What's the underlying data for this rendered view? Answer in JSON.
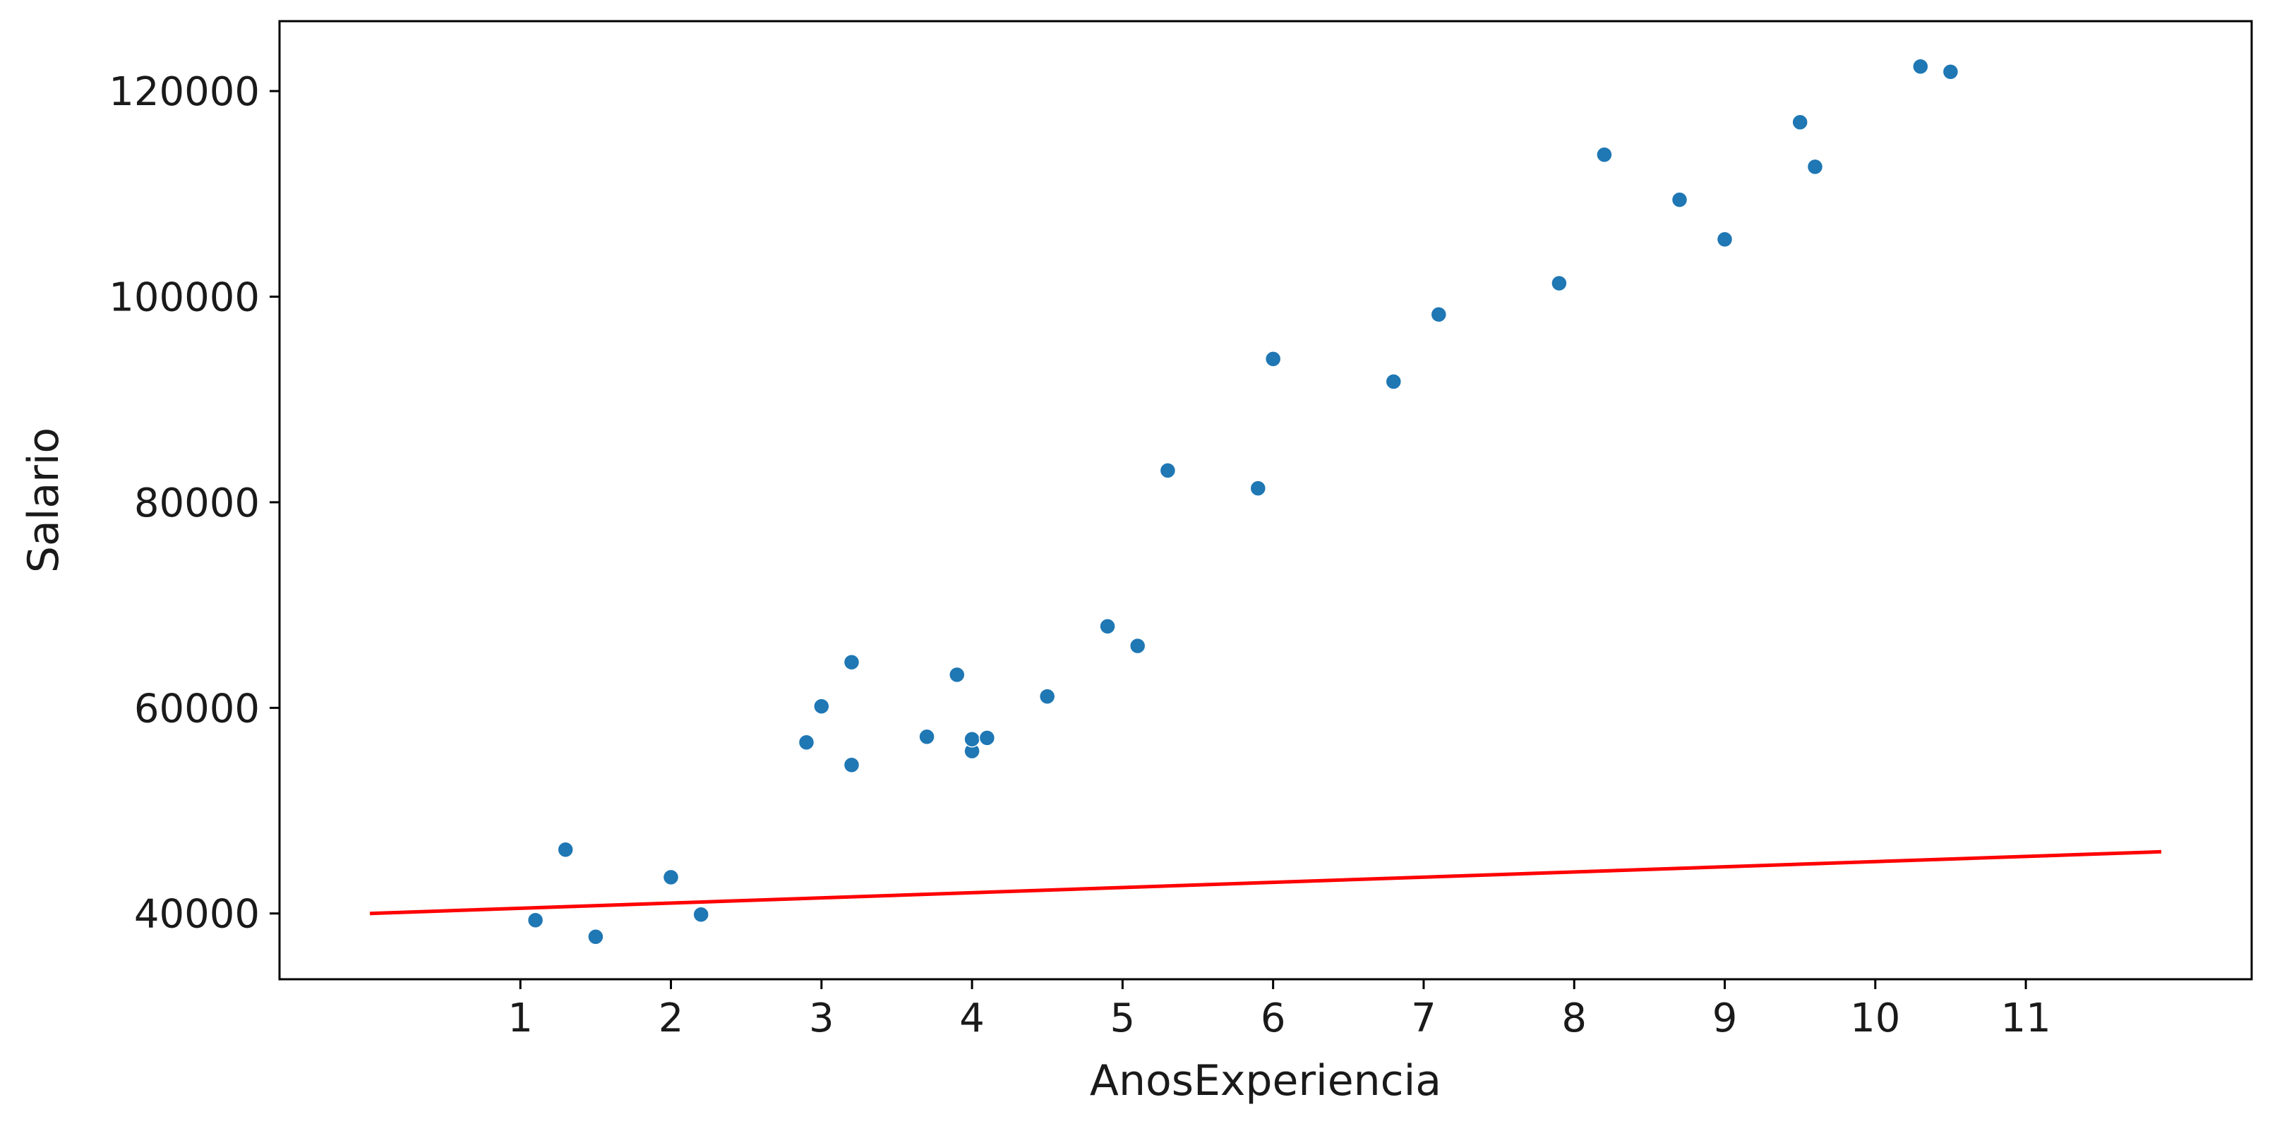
{
  "chart_data": {
    "type": "scatter",
    "title": "",
    "xlabel": "AnosExperiencia",
    "ylabel": "Salario",
    "xlim": [
      -0.6,
      12.5
    ],
    "ylim": [
      33600,
      126800
    ],
    "x_ticks": [
      1,
      2,
      3,
      4,
      5,
      6,
      7,
      8,
      9,
      10,
      11
    ],
    "x_tick_labels": [
      "1",
      "2",
      "3",
      "4",
      "5",
      "6",
      "7",
      "8",
      "9",
      "10",
      "11"
    ],
    "y_ticks": [
      40000,
      60000,
      80000,
      100000,
      120000
    ],
    "y_tick_labels": [
      "40000",
      "60000",
      "80000",
      "100000",
      "120000"
    ],
    "grid": false,
    "colors": {
      "points": "#1f77b4",
      "line": "#ff0000",
      "axes": "#000000"
    },
    "series": [
      {
        "type": "scatter",
        "points": [
          [
            1.1,
            39343
          ],
          [
            1.3,
            46205
          ],
          [
            1.5,
            37731
          ],
          [
            2.0,
            43525
          ],
          [
            2.2,
            39891
          ],
          [
            2.9,
            56642
          ],
          [
            3.0,
            60150
          ],
          [
            3.2,
            54445
          ],
          [
            3.2,
            64445
          ],
          [
            3.7,
            57189
          ],
          [
            3.9,
            63218
          ],
          [
            4.0,
            55794
          ],
          [
            4.0,
            56957
          ],
          [
            4.1,
            57081
          ],
          [
            4.5,
            61111
          ],
          [
            4.9,
            67938
          ],
          [
            5.1,
            66029
          ],
          [
            5.3,
            83088
          ],
          [
            5.9,
            81363
          ],
          [
            6.0,
            93940
          ],
          [
            6.8,
            91738
          ],
          [
            7.1,
            98273
          ],
          [
            7.9,
            101302
          ],
          [
            8.2,
            113812
          ],
          [
            8.7,
            109431
          ],
          [
            9.0,
            105582
          ],
          [
            9.5,
            116969
          ],
          [
            9.6,
            112635
          ],
          [
            10.3,
            122391
          ],
          [
            10.5,
            121872
          ]
        ]
      },
      {
        "type": "line",
        "points": [
          [
            0.0,
            40000
          ],
          [
            11.9,
            46000
          ]
        ]
      }
    ]
  }
}
